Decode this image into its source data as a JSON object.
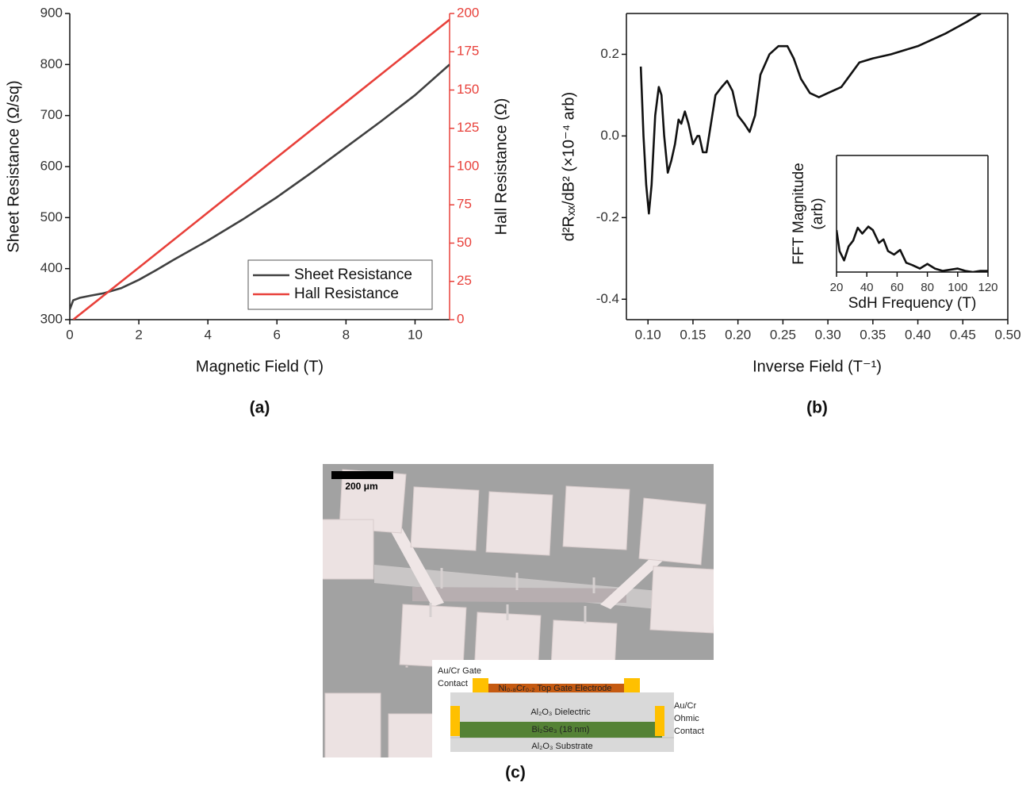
{
  "chart_data": [
    {
      "type": "line",
      "label": "(a)",
      "xlabel": "Magnetic Field (T)",
      "ylabel": "Sheet Resistance (Ω/sq)",
      "y2label": "Hall Resistance (Ω)",
      "xlim": [
        0,
        11
      ],
      "xticks": [
        0,
        2,
        4,
        6,
        8,
        10
      ],
      "ylim": [
        300,
        900
      ],
      "yticks": [
        300,
        400,
        500,
        600,
        700,
        800,
        900
      ],
      "y2lim": [
        0,
        200
      ],
      "y2ticks": [
        0,
        25,
        50,
        75,
        100,
        125,
        150,
        175,
        200
      ],
      "y2_color": "#e8403a",
      "legend": "lower right",
      "series": [
        {
          "name": "Sheet Resistance",
          "color": "#404040",
          "x": [
            0,
            0.1,
            0.3,
            0.6,
            1,
            1.5,
            2,
            2.5,
            3,
            3.5,
            4,
            5,
            6,
            7,
            8,
            9,
            10,
            11
          ],
          "values": [
            320,
            338,
            343,
            347,
            352,
            362,
            378,
            397,
            417,
            436,
            455,
            496,
            540,
            588,
            638,
            688,
            740,
            800
          ]
        },
        {
          "name": "Hall Resistance",
          "color": "#e8403a",
          "axis": "y2",
          "x": [
            0.1,
            2,
            4,
            6,
            8,
            10,
            11
          ],
          "values": [
            0,
            34,
            70,
            106,
            142,
            178,
            196
          ]
        }
      ]
    },
    {
      "type": "line",
      "label": "(b)",
      "xlabel": "Inverse Field (T⁻¹)",
      "ylabel": "d²Rₓₓ/dB² (×10⁻⁴ arb)",
      "xlim": [
        0.076,
        0.5
      ],
      "xticks": [
        {
          "value": 0.1,
          "label": "0.10"
        },
        {
          "value": 0.15,
          "label": "0.15"
        },
        {
          "value": 0.2,
          "label": "0.20"
        },
        {
          "value": 0.25,
          "label": "0.25"
        },
        {
          "value": 0.3,
          "label": "0.30"
        },
        {
          "value": 0.35,
          "label": "0.35"
        },
        {
          "value": 0.4,
          "label": "0.40"
        },
        {
          "value": 0.45,
          "label": "0.45"
        },
        {
          "value": 0.5,
          "label": "0.50"
        }
      ],
      "ylim": [
        -0.45,
        0.3
      ],
      "yticks": [
        -0.4,
        -0.2,
        {
          "value": 0,
          "label": "0.0"
        },
        0.2
      ],
      "series": [
        {
          "color": "#111111",
          "x": [
            0.092,
            0.095,
            0.098,
            0.101,
            0.104,
            0.108,
            0.112,
            0.115,
            0.118,
            0.122,
            0.126,
            0.13,
            0.134,
            0.137,
            0.141,
            0.145,
            0.15,
            0.155,
            0.157,
            0.161,
            0.165,
            0.17,
            0.175,
            0.182,
            0.188,
            0.194,
            0.2,
            0.207,
            0.213,
            0.219,
            0.225,
            0.235,
            0.245,
            0.255,
            0.262,
            0.27,
            0.28,
            0.29,
            0.3,
            0.315,
            0.325,
            0.335,
            0.35,
            0.37,
            0.4,
            0.43,
            0.455,
            0.47
          ],
          "values": [
            0.17,
            0.0,
            -0.12,
            -0.19,
            -0.12,
            0.05,
            0.12,
            0.1,
            0.0,
            -0.09,
            -0.06,
            -0.02,
            0.04,
            0.03,
            0.06,
            0.03,
            -0.02,
            0.0,
            0.0,
            -0.04,
            -0.04,
            0.03,
            0.1,
            0.12,
            0.135,
            0.11,
            0.05,
            0.03,
            0.01,
            0.05,
            0.15,
            0.2,
            0.22,
            0.22,
            0.19,
            0.14,
            0.105,
            0.095,
            0.105,
            0.12,
            0.15,
            0.18,
            0.19,
            0.2,
            0.22,
            0.25,
            0.28,
            0.3
          ]
        }
      ]
    },
    {
      "type": "line",
      "xlabel": "SdH Frequency (T)",
      "ylabel": [
        "FFT Magnitude",
        "(arb)"
      ],
      "xlim": [
        20,
        120
      ],
      "xticks": [
        20,
        40,
        60,
        80,
        100,
        120
      ],
      "ylim": [
        0,
        1
      ],
      "series": [
        {
          "color": "#111111",
          "x": [
            20,
            22,
            25,
            28,
            31,
            34,
            37,
            41,
            44,
            48,
            51,
            54,
            58,
            62,
            66,
            70,
            75,
            80,
            85,
            90,
            95,
            100,
            105,
            110,
            115,
            120
          ],
          "values": [
            0.36,
            0.18,
            0.1,
            0.22,
            0.27,
            0.38,
            0.33,
            0.39,
            0.36,
            0.25,
            0.28,
            0.18,
            0.15,
            0.19,
            0.08,
            0.06,
            0.03,
            0.07,
            0.03,
            0.01,
            0.02,
            0.03,
            0.01,
            0.0,
            0.01,
            0.01
          ]
        }
      ]
    }
  ],
  "image_panel": {
    "label": "(c)",
    "scale_bar": "200 μm",
    "cross_section": {
      "gate_contact": [
        "Au/Cr Gate",
        "Contact"
      ],
      "top_gate": "Ni₀.₈Cr₀.₂ Top Gate Electrode",
      "dielectric": "Al₂O₃ Dielectric",
      "channel": "Bi₂Se₃ (18 nm)",
      "substrate": "Al₂O₃ Substrate",
      "ohmic_contact": [
        "Au/Cr",
        "Ohmic",
        "Contact"
      ]
    }
  }
}
